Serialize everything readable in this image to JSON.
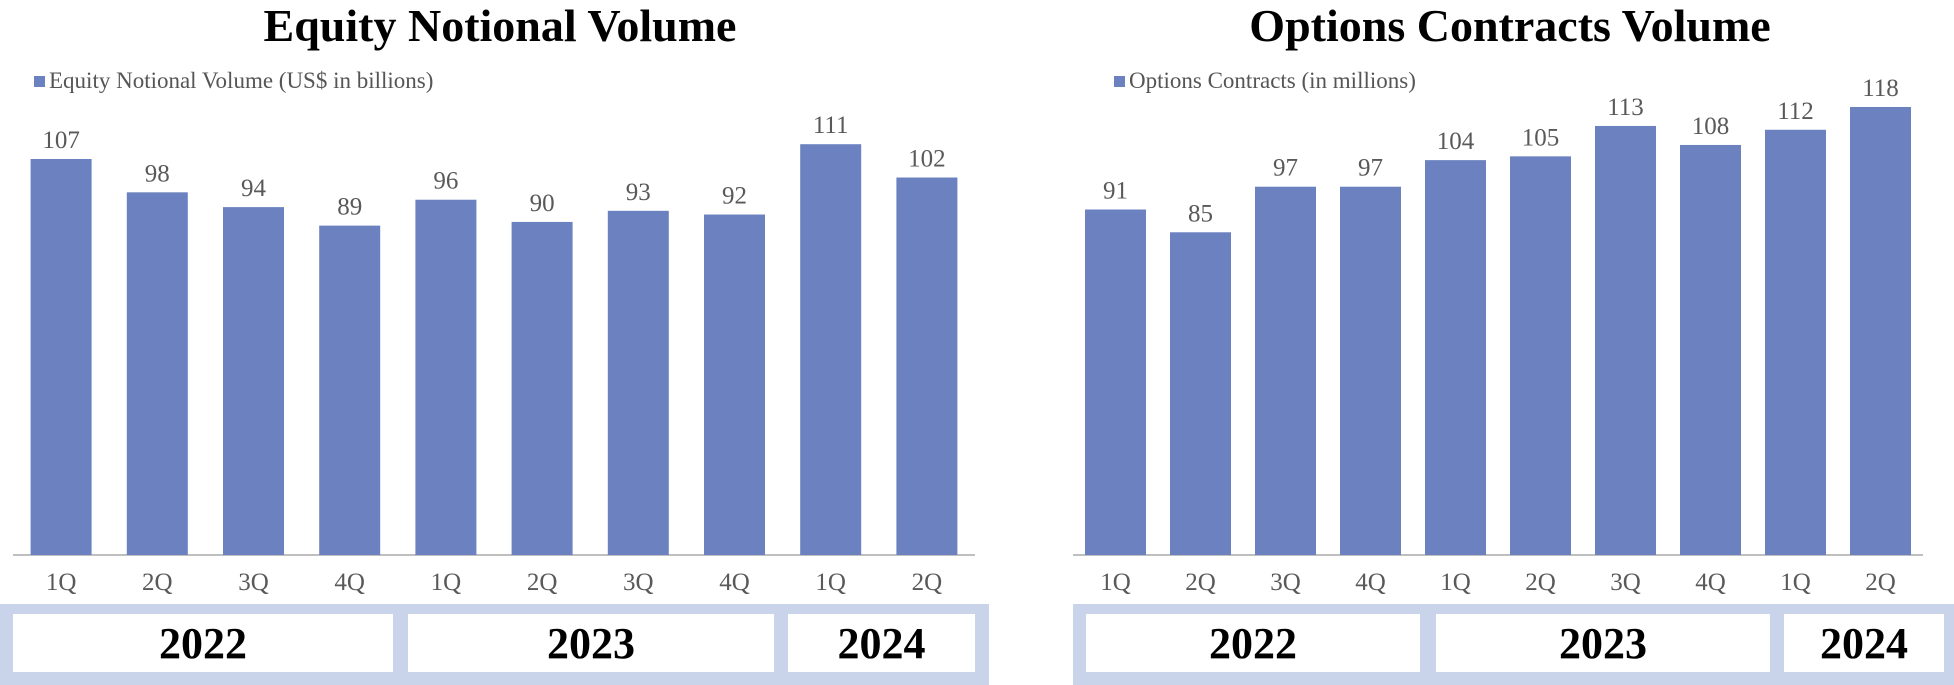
{
  "colors": {
    "bar": "#6b81c0",
    "axis": "#bfbfbf",
    "band": "#c9d4ea",
    "label": "#595959"
  },
  "chart_data": [
    {
      "type": "bar",
      "title": "Equity Notional Volume",
      "legend": "Equity Notional Volume (US$ in billions)",
      "series": [
        {
          "name": "Equity Notional Volume (US$ in billions)",
          "values": [
            107,
            98,
            94,
            89,
            96,
            90,
            93,
            92,
            111,
            102
          ]
        }
      ],
      "categories": [
        "1Q",
        "2Q",
        "3Q",
        "4Q",
        "1Q",
        "2Q",
        "3Q",
        "4Q",
        "1Q",
        "2Q"
      ],
      "years": [
        "2022",
        "2023",
        "2024"
      ],
      "ylim": [
        0,
        117
      ],
      "grid": false,
      "legend_position": "top-left"
    },
    {
      "type": "bar",
      "title": "Options Contracts Volume",
      "legend": "Options Contracts (in millions)",
      "series": [
        {
          "name": "Options Contracts (in millions)",
          "values": [
            91,
            85,
            97,
            97,
            104,
            105,
            113,
            108,
            112,
            118
          ]
        }
      ],
      "categories": [
        "1Q",
        "2Q",
        "3Q",
        "4Q",
        "1Q",
        "2Q",
        "3Q",
        "4Q",
        "1Q",
        "2Q"
      ],
      "years": [
        "2022",
        "2023",
        "2024"
      ],
      "ylim": [
        0,
        123
      ],
      "grid": false,
      "legend_position": "top-left"
    }
  ]
}
